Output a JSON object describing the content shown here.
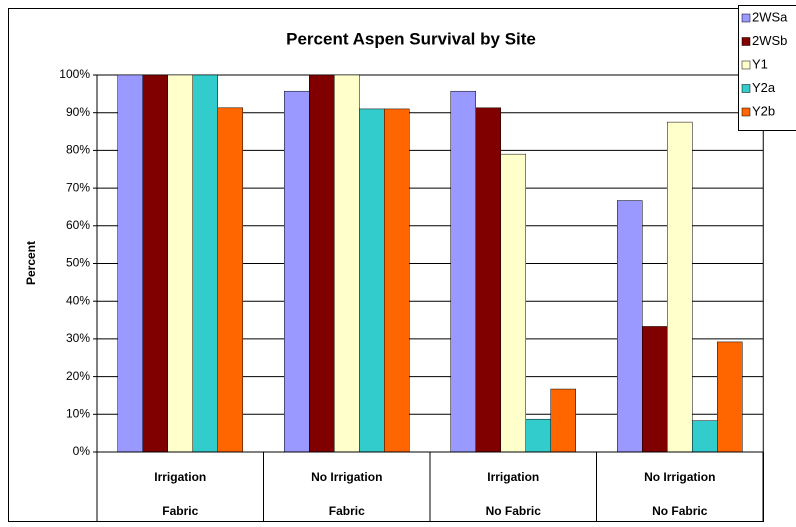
{
  "chart_data": {
    "type": "bar",
    "title": "Percent Aspen Survival by Site",
    "y_label": "Percent",
    "categories": [
      "Irrigation",
      "No Irrigation",
      "Irrigation",
      "No Irrigation"
    ],
    "category_groups": [
      "Fabric",
      "Fabric",
      "No Fabric",
      "No Fabric"
    ],
    "series": [
      {
        "name": "2WSa",
        "color": "#9999ff",
        "values": [
          100,
          95.7,
          95.7,
          66.7
        ]
      },
      {
        "name": "2WSb",
        "color": "#800000",
        "values": [
          100,
          100,
          91.3,
          33.3
        ]
      },
      {
        "name": "Y1",
        "color": "#ffffcc",
        "values": [
          100,
          100,
          79,
          87.5
        ]
      },
      {
        "name": "Y2a",
        "color": "#33cccc",
        "values": [
          100,
          91,
          8.7,
          8.3
        ]
      },
      {
        "name": "Y2b",
        "color": "#ff6600",
        "values": [
          91.3,
          91,
          16.7,
          29.2
        ]
      }
    ],
    "ylim": [
      0,
      100
    ],
    "yticks": [
      {
        "value": 0,
        "label": "0%"
      },
      {
        "value": 10,
        "label": "10%"
      },
      {
        "value": 20,
        "label": "20%"
      },
      {
        "value": 30,
        "label": "30%"
      },
      {
        "value": 40,
        "label": "40%"
      },
      {
        "value": 50,
        "label": "50%"
      },
      {
        "value": 60,
        "label": "60%"
      },
      {
        "value": 70,
        "label": "70%"
      },
      {
        "value": 80,
        "label": "80%"
      },
      {
        "value": 90,
        "label": "90%"
      },
      {
        "value": 100,
        "label": "100%"
      }
    ],
    "grid": true,
    "legend": "top-right"
  }
}
